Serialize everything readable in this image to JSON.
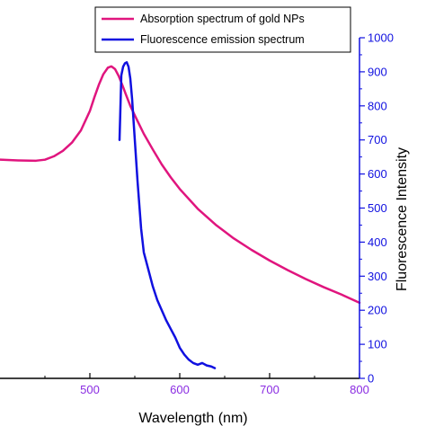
{
  "chart_data": {
    "type": "line",
    "xlabel": "Wavelength (nm)",
    "y2label": "Fluorescence Intensity",
    "xlim": [
      400,
      800
    ],
    "x_ticks": [
      500,
      600,
      700,
      800
    ],
    "y2lim": [
      0,
      1000
    ],
    "y2_ticks": [
      0,
      100,
      200,
      300,
      400,
      500,
      600,
      700,
      800,
      900,
      1000
    ],
    "legend_position": "top-right",
    "colors": {
      "absorption": "#e0157e",
      "fluorescence": "#1010e0",
      "right_axis": "#1010e0",
      "x_ticks": "#8a2be2"
    },
    "series": [
      {
        "name": "Absorption spectrum of gold NPs",
        "axis": "unscaled",
        "x": [
          400,
          420,
          440,
          450,
          460,
          470,
          480,
          490,
          500,
          505,
          510,
          515,
          520,
          524,
          528,
          532,
          536,
          540,
          545,
          550,
          555,
          560,
          570,
          580,
          590,
          600,
          620,
          640,
          660,
          680,
          700,
          720,
          740,
          760,
          780,
          800
        ],
        "y": [
          642,
          640,
          639,
          642,
          652,
          668,
          692,
          728,
          785,
          825,
          862,
          893,
          912,
          916,
          908,
          888,
          862,
          834,
          800,
          772,
          745,
          718,
          672,
          628,
          590,
          556,
          498,
          451,
          411,
          377,
          346,
          318,
          292,
          268,
          246,
          222
        ]
      },
      {
        "name": "Fluorescence emission spectrum",
        "axis": "right",
        "x": [
          533,
          535,
          537,
          539,
          541,
          543,
          545,
          547,
          549,
          551,
          553,
          555,
          557,
          560,
          565,
          570,
          575,
          580,
          585,
          590,
          595,
          600,
          605,
          610,
          615,
          620,
          625,
          630,
          635,
          639
        ],
        "y": [
          700,
          890,
          915,
          925,
          928,
          915,
          880,
          820,
          740,
          660,
          580,
          510,
          440,
          370,
          320,
          270,
          230,
          200,
          170,
          145,
          120,
          90,
          70,
          55,
          45,
          40,
          45,
          38,
          35,
          30
        ]
      }
    ]
  }
}
